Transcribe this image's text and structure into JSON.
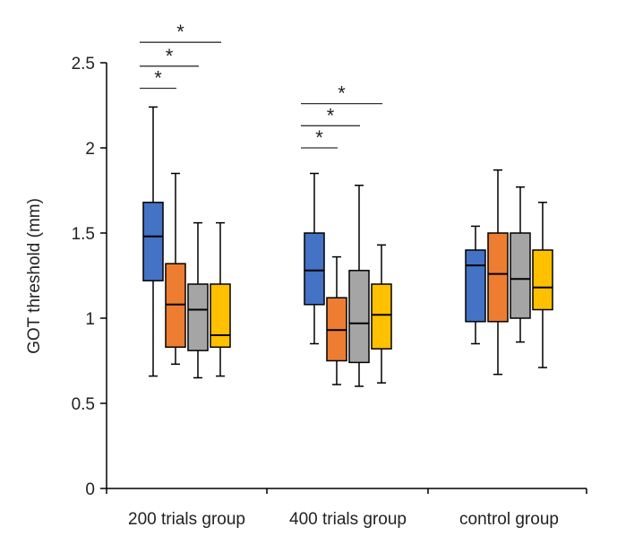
{
  "chart_data": {
    "type": "box",
    "title": "",
    "ylabel": "GOT threshold  (mm)",
    "xlabel": "",
    "ylim": [
      0,
      2.5
    ],
    "yticks": [
      0,
      0.5,
      1,
      1.5,
      2,
      2.5
    ],
    "ytick_labels": [
      "0",
      "0.5",
      "1",
      "1.5",
      "2",
      "2.5"
    ],
    "grid": false,
    "legend": "none",
    "categories": [
      "200 trials group",
      "400 trials group",
      "control group"
    ],
    "series_colors": [
      "#4472C4",
      "#ED7D31",
      "#A5A5A5",
      "#FFC000"
    ],
    "groups": [
      {
        "name": "200 trials group",
        "boxes": [
          {
            "min": 0.66,
            "q1": 1.22,
            "median": 1.48,
            "q3": 1.68,
            "max": 2.24
          },
          {
            "min": 0.73,
            "q1": 0.83,
            "median": 1.08,
            "q3": 1.32,
            "max": 1.85
          },
          {
            "min": 0.65,
            "q1": 0.81,
            "median": 1.05,
            "q3": 1.2,
            "max": 1.56
          },
          {
            "min": 0.66,
            "q1": 0.83,
            "median": 0.9,
            "q3": 1.2,
            "max": 1.56
          }
        ]
      },
      {
        "name": "400 trials group",
        "boxes": [
          {
            "min": 0.85,
            "q1": 1.08,
            "median": 1.28,
            "q3": 1.5,
            "max": 1.85
          },
          {
            "min": 0.61,
            "q1": 0.75,
            "median": 0.93,
            "q3": 1.12,
            "max": 1.36
          },
          {
            "min": 0.6,
            "q1": 0.74,
            "median": 0.97,
            "q3": 1.28,
            "max": 1.78
          },
          {
            "min": 0.62,
            "q1": 0.82,
            "median": 1.02,
            "q3": 1.2,
            "max": 1.43
          }
        ]
      },
      {
        "name": "control group",
        "boxes": [
          {
            "min": 0.85,
            "q1": 0.98,
            "median": 1.31,
            "q3": 1.4,
            "max": 1.54
          },
          {
            "min": 0.67,
            "q1": 0.98,
            "median": 1.26,
            "q3": 1.5,
            "max": 1.87
          },
          {
            "min": 0.86,
            "q1": 1.0,
            "median": 1.23,
            "q3": 1.5,
            "max": 1.77
          },
          {
            "min": 0.71,
            "q1": 1.05,
            "median": 1.18,
            "q3": 1.4,
            "max": 1.68
          }
        ]
      }
    ],
    "annotations": [
      {
        "text": "*",
        "group": 0,
        "from_box": 0,
        "to_box": 1,
        "y": 2.35
      },
      {
        "text": "*",
        "group": 0,
        "from_box": 0,
        "to_box": 2,
        "y": 2.48
      },
      {
        "text": "*",
        "group": 0,
        "from_box": 0,
        "to_box": 3,
        "y": 2.62
      },
      {
        "text": "*",
        "group": 1,
        "from_box": 0,
        "to_box": 1,
        "y": 2.0
      },
      {
        "text": "*",
        "group": 1,
        "from_box": 0,
        "to_box": 2,
        "y": 2.13
      },
      {
        "text": "*",
        "group": 1,
        "from_box": 0,
        "to_box": 3,
        "y": 2.26
      }
    ]
  }
}
